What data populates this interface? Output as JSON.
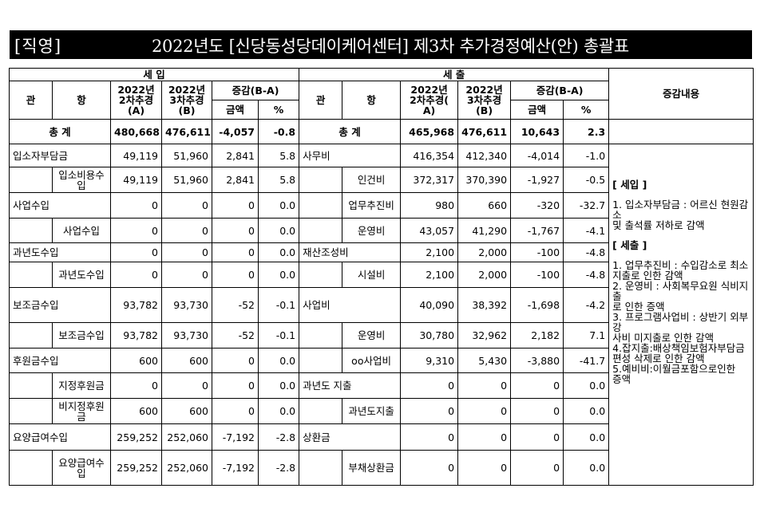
{
  "header": {
    "bracket_label": "[직영]",
    "title": "2022년도 [신당동성당데이케어센터] 제3차 추가경정예산(안) 총괄표"
  },
  "columns": {
    "income": "세 입",
    "expense": "세 출",
    "gwan": "관",
    "hang": "항",
    "col_a_line1": "2022년",
    "col_a_line2": "2차추경",
    "col_a_line3": "(A)",
    "col_b_line1": "2022년",
    "col_b_line2": "3차추경",
    "col_b_line3": "(B)",
    "exp_a_line1": "2022년",
    "exp_a_line2": "2차추경(",
    "exp_a_line3": "A)",
    "exp_b_line1": "2022년",
    "exp_b_line2": "3차추경",
    "exp_b_line3": "(B)",
    "diff": "증감(B-A)",
    "amount": "금액",
    "percent": "%",
    "memo": "증감내용"
  },
  "total": {
    "label": "총   계",
    "in_a": "480,668",
    "in_b": "476,611",
    "in_diff": "-4,057",
    "in_pct": "-0.8",
    "ex_label": "총   계",
    "ex_a": "465,968",
    "ex_b": "476,611",
    "ex_diff": "10,643",
    "ex_pct": "2.3"
  },
  "rows": [
    {
      "in_gwan": "입소자부담금",
      "in_hang": "",
      "in_a": "49,119",
      "in_b": "51,960",
      "in_diff": "2,841",
      "in_pct": "5.8",
      "ex_gwan": "사무비",
      "ex_hang": "",
      "ex_a": "416,354",
      "ex_b": "412,340",
      "ex_diff": "-4,014",
      "ex_pct": "-1.0"
    },
    {
      "in_gwan": "",
      "in_hang": "입소비용수입",
      "in_a": "49,119",
      "in_b": "51,960",
      "in_diff": "2,841",
      "in_pct": "5.8",
      "ex_gwan": "",
      "ex_hang": "인건비",
      "ex_a": "372,317",
      "ex_b": "370,390",
      "ex_diff": "-1,927",
      "ex_pct": "-0.5"
    },
    {
      "in_gwan": "사업수입",
      "in_hang": "",
      "in_a": "0",
      "in_b": "0",
      "in_diff": "0",
      "in_pct": "0.0",
      "ex_gwan": "",
      "ex_hang": "업무추진비",
      "ex_a": "980",
      "ex_b": "660",
      "ex_diff": "-320",
      "ex_pct": "-32.7"
    },
    {
      "in_gwan": "",
      "in_hang": "사업수입",
      "in_a": "0",
      "in_b": "0",
      "in_diff": "0",
      "in_pct": "0.0",
      "ex_gwan": "",
      "ex_hang": "운영비",
      "ex_a": "43,057",
      "ex_b": "41,290",
      "ex_diff": "-1,767",
      "ex_pct": "-4.1"
    },
    {
      "in_gwan": "과년도수입",
      "in_hang": "",
      "in_a": "0",
      "in_b": "0",
      "in_diff": "0",
      "in_pct": "0.0",
      "ex_gwan": "재산조성비",
      "ex_hang": "",
      "ex_a": "2,100",
      "ex_b": "2,000",
      "ex_diff": "-100",
      "ex_pct": "-4.8"
    },
    {
      "in_gwan": "",
      "in_hang": "과년도수입",
      "in_a": "0",
      "in_b": "0",
      "in_diff": "0",
      "in_pct": "0.0",
      "ex_gwan": "",
      "ex_hang": "시설비",
      "ex_a": "2,100",
      "ex_b": "2,000",
      "ex_diff": "-100",
      "ex_pct": "-4.8"
    },
    {
      "in_gwan": "보조금수입",
      "in_hang": "",
      "in_a": "93,782",
      "in_b": "93,730",
      "in_diff": "-52",
      "in_pct": "-0.1",
      "ex_gwan": "사업비",
      "ex_hang": "",
      "ex_a": "40,090",
      "ex_b": "38,392",
      "ex_diff": "-1,698",
      "ex_pct": "-4.2"
    },
    {
      "in_gwan": "",
      "in_hang": "보조금수입",
      "in_a": "93,782",
      "in_b": "93,730",
      "in_diff": "-52",
      "in_pct": "-0.1",
      "ex_gwan": "",
      "ex_hang": "운영비",
      "ex_a": "30,780",
      "ex_b": "32,962",
      "ex_diff": "2,182",
      "ex_pct": "7.1"
    },
    {
      "in_gwan": "후원금수입",
      "in_hang": "",
      "in_a": "600",
      "in_b": "600",
      "in_diff": "0",
      "in_pct": "0.0",
      "ex_gwan": "",
      "ex_hang": "oo사업비",
      "ex_a": "9,310",
      "ex_b": "5,430",
      "ex_diff": "-3,880",
      "ex_pct": "-41.7"
    },
    {
      "in_gwan": "",
      "in_hang": "지정후원금",
      "in_a": "0",
      "in_b": "0",
      "in_diff": "0",
      "in_pct": "0.0",
      "ex_gwan": "과년도 지출",
      "ex_hang": "",
      "ex_a": "0",
      "ex_b": "0",
      "ex_diff": "0",
      "ex_pct": "0.0"
    },
    {
      "in_gwan": "",
      "in_hang": "비지정후원금",
      "in_a": "600",
      "in_b": "600",
      "in_diff": "0",
      "in_pct": "0.0",
      "ex_gwan": "",
      "ex_hang": "과년도지출",
      "ex_a": "0",
      "ex_b": "0",
      "ex_diff": "0",
      "ex_pct": "0.0"
    },
    {
      "in_gwan": "요양급여수입",
      "in_hang": "",
      "in_a": "259,252",
      "in_b": "252,060",
      "in_diff": "-7,192",
      "in_pct": "-2.8",
      "ex_gwan": "상환금",
      "ex_hang": "",
      "ex_a": "0",
      "ex_b": "0",
      "ex_diff": "0",
      "ex_pct": "0.0"
    },
    {
      "in_gwan": "",
      "in_hang": "요양급여수입",
      "in_a": "259,252",
      "in_b": "252,060",
      "in_diff": "-7,192",
      "in_pct": "-2.8",
      "ex_gwan": "",
      "ex_hang": "부채상환금",
      "ex_a": "0",
      "ex_b": "0",
      "ex_diff": "0",
      "ex_pct": "0.0"
    }
  ],
  "memo": {
    "income_heading": "[ 세입 ]",
    "income_lines": [
      "1. 입소자부담금 : 어르신 현원감소",
      "및 출석률 저하로 감액"
    ],
    "expense_heading": "[ 세출 ]",
    "expense_lines": [
      "1. 업무추진비 : 수입감소로 최소 지출로 인한 감액",
      "2. 운영비 : 사회복무요원 식비지출",
      "로 인한 증액",
      "3. 프로그램사업비 : 상반기 외부강",
      "사비 미지출로 인한 감액",
      "4.잡지출:배상책임보험자부담금",
      "편성 삭제로 인한 감액",
      "5.예비비:이월금포함으로인한",
      "증액"
    ]
  }
}
